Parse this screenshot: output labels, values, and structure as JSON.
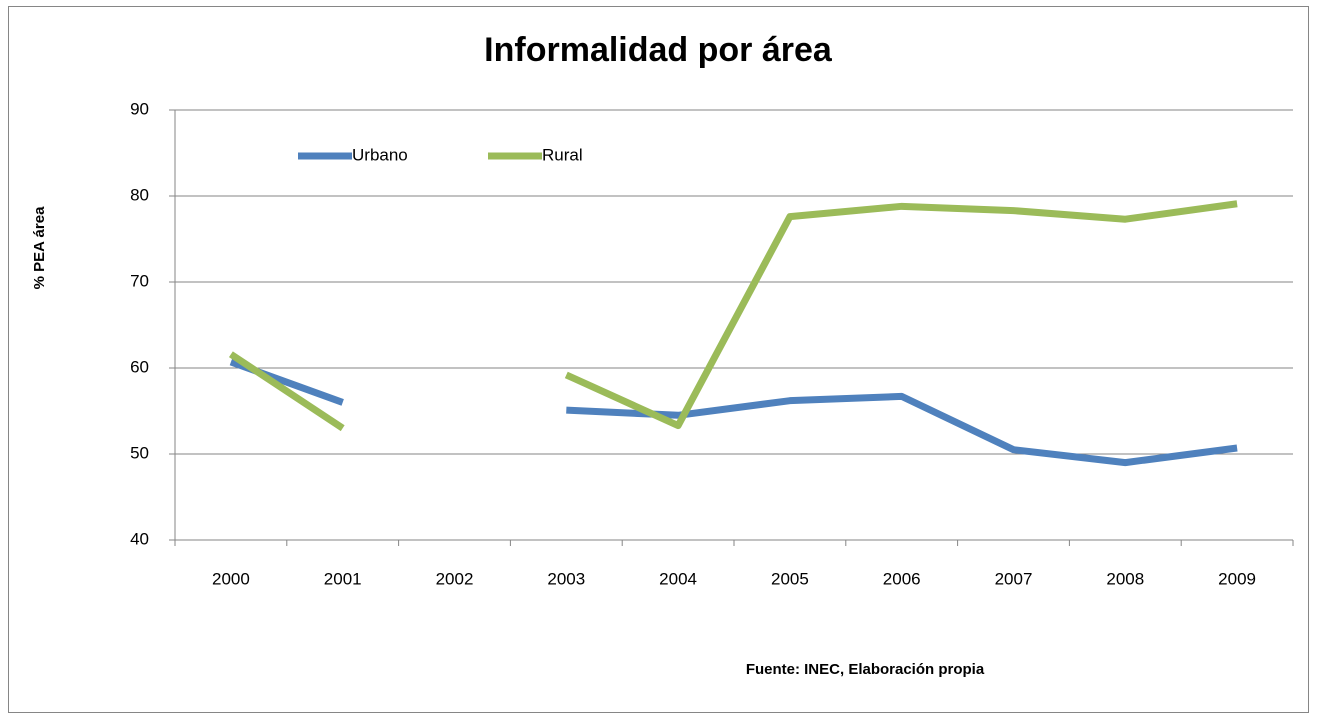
{
  "chart_data": {
    "type": "line",
    "title": "Informalidad por área",
    "y_label": "% PEA área",
    "annotation": "Fuente: INEC, Elaboración  propia",
    "categories": [
      "2000",
      "2001",
      "2002",
      "2003",
      "2004",
      "2005",
      "2006",
      "2007",
      "2008",
      "2009"
    ],
    "series": [
      {
        "name": "Urbano",
        "color": "#4f81bd",
        "values": [
          60.7,
          56.0,
          null,
          55.1,
          54.5,
          56.2,
          56.7,
          50.5,
          49.0,
          50.7
        ]
      },
      {
        "name": "Rural",
        "color": "#9bbb59",
        "values": [
          61.6,
          53.0,
          null,
          59.2,
          53.3,
          77.6,
          78.8,
          78.3,
          77.3,
          79.1
        ]
      }
    ],
    "ylim": [
      40,
      90
    ],
    "yticks": [
      40,
      50,
      60,
      70,
      80,
      90
    ],
    "grid": true,
    "legend": "upper left"
  }
}
